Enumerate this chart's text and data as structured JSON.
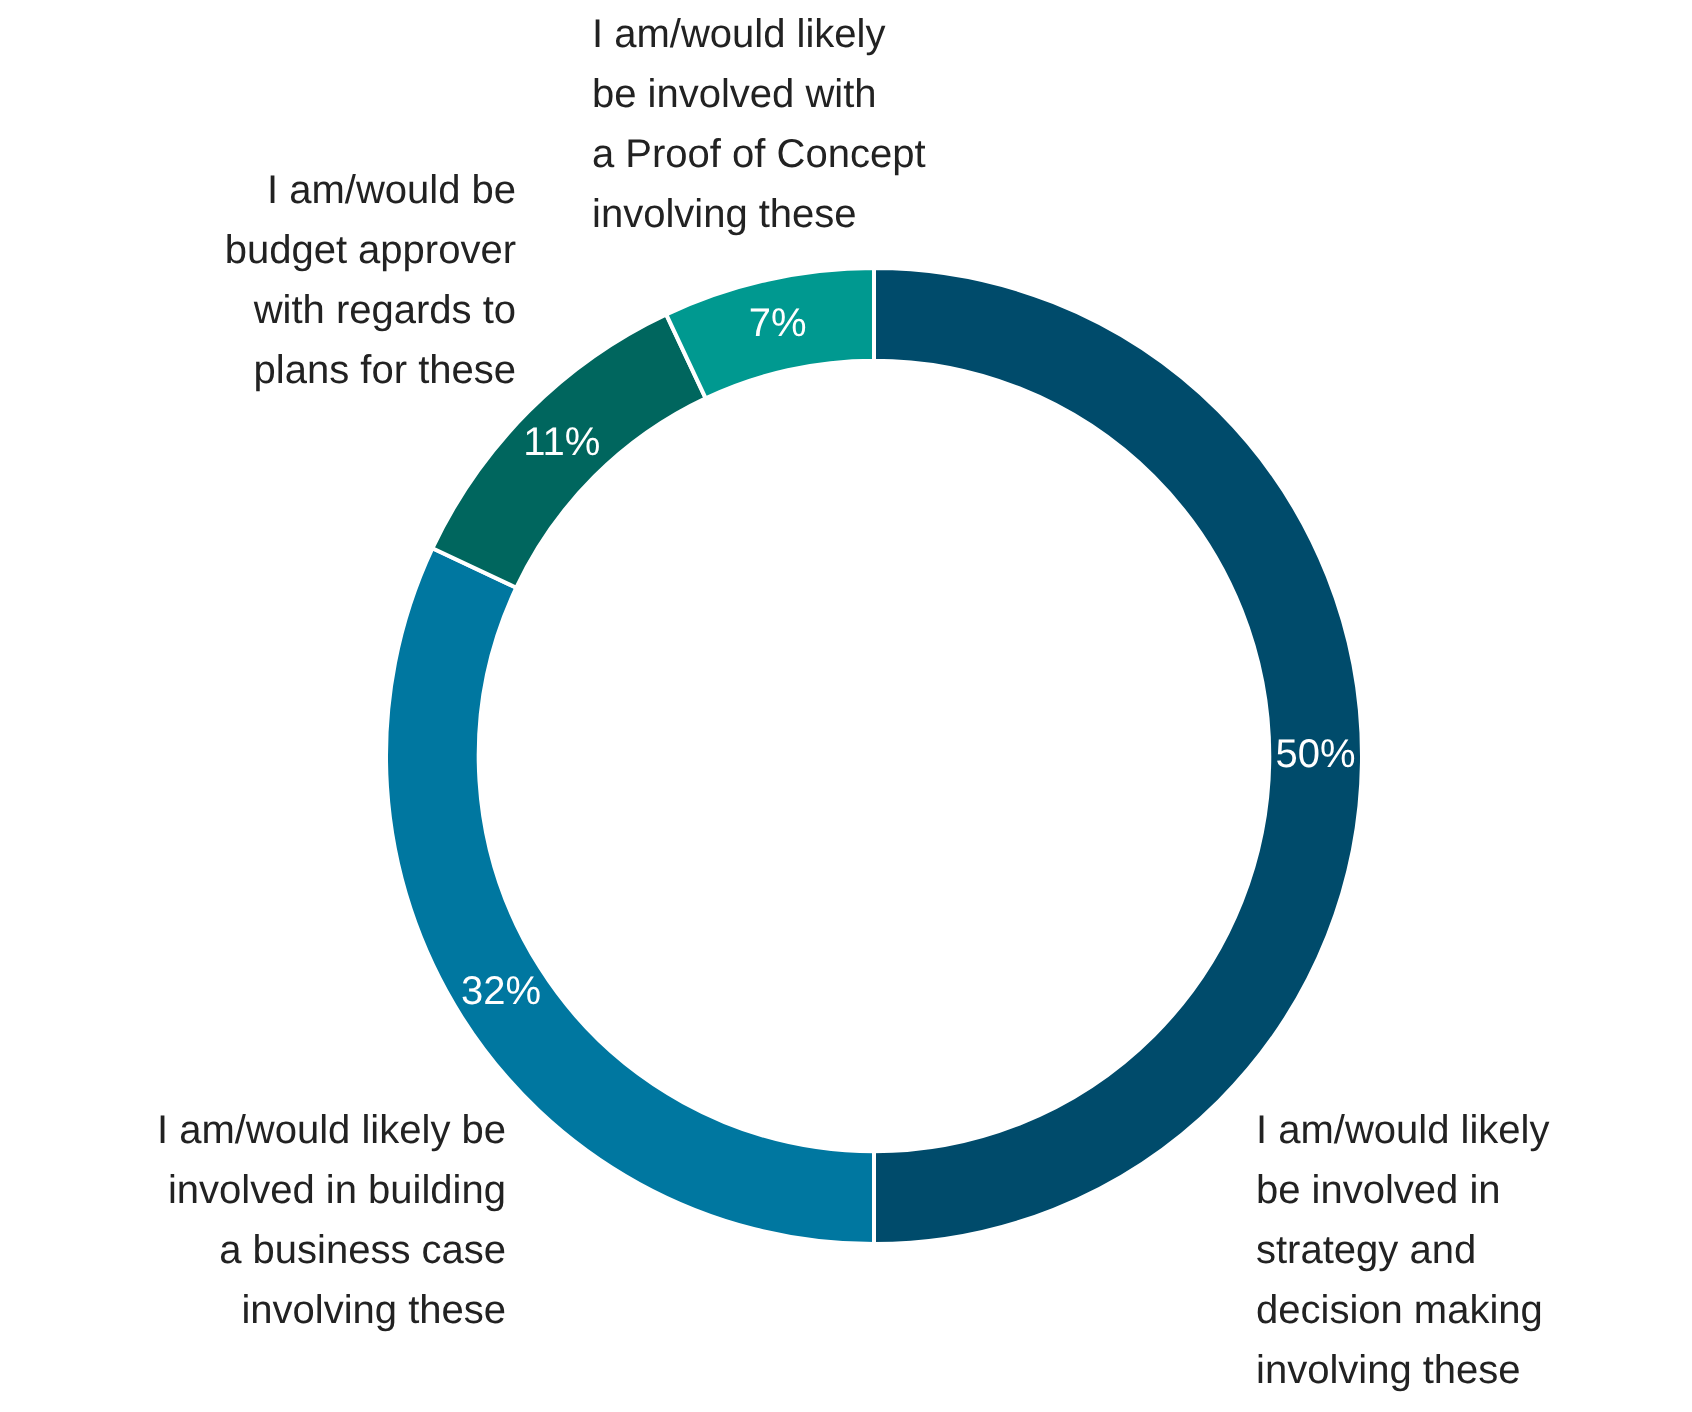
{
  "chart_data": {
    "type": "donut",
    "categories": [
      "I am/would likely\nbe involved in\nstrategy and\ndecision making\ninvolving these",
      "I am/would likely be\ninvolved in building\na business case\ninvolving these",
      "I am/would be\nbudget approver\nwith regards to\nplans for these",
      "I am/would likely\nbe involved with\na Proof of Concept\ninvolving these"
    ],
    "values": [
      50,
      32,
      11,
      7
    ],
    "colors": [
      "#004b6b",
      "#0077a0",
      "#00665e",
      "#009990"
    ],
    "value_labels": [
      "50%",
      "32%",
      "11%",
      "7%"
    ],
    "legend": false
  }
}
